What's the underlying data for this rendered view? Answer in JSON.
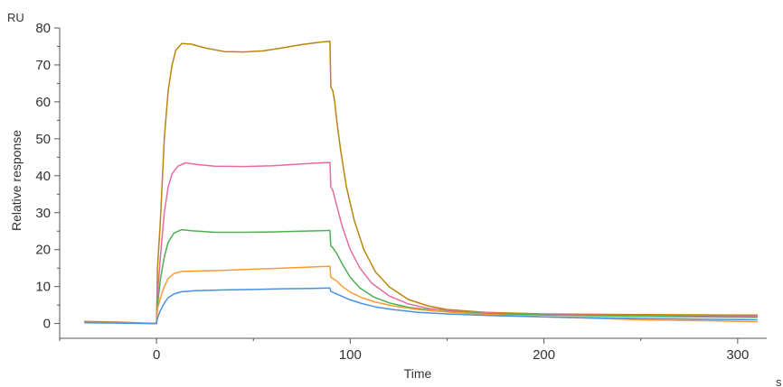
{
  "chart_data": {
    "type": "line",
    "title": "",
    "xlabel": "Time",
    "ylabel": "Relative response",
    "y_unit": "RU",
    "x_unit": "s",
    "xlim": [
      -50,
      315
    ],
    "ylim": [
      -4,
      80
    ],
    "x_ticks": [
      0,
      100,
      200,
      300
    ],
    "y_ticks": [
      0,
      10,
      20,
      30,
      40,
      50,
      60,
      70,
      80
    ],
    "grid": false,
    "legend": "none",
    "series": [
      {
        "color": "#b8860b",
        "points": [
          [
            -37,
            0.6
          ],
          [
            -20,
            0.4
          ],
          [
            0,
            0
          ],
          [
            0.5,
            15
          ],
          [
            2,
            28
          ],
          [
            4,
            50
          ],
          [
            6,
            63
          ],
          [
            8,
            70
          ],
          [
            10,
            74
          ],
          [
            13,
            75.8
          ],
          [
            18,
            75.6
          ],
          [
            25,
            74.6
          ],
          [
            35,
            73.6
          ],
          [
            45,
            73.5
          ],
          [
            55,
            73.8
          ],
          [
            65,
            74.6
          ],
          [
            75,
            75.5
          ],
          [
            85,
            76.2
          ],
          [
            89.5,
            76.4
          ],
          [
            90,
            64
          ],
          [
            91,
            63
          ],
          [
            92,
            60
          ],
          [
            93,
            55
          ],
          [
            95,
            47
          ],
          [
            98,
            37
          ],
          [
            102,
            28
          ],
          [
            107,
            20
          ],
          [
            113,
            14
          ],
          [
            120,
            10
          ],
          [
            130,
            6.5
          ],
          [
            140,
            4.8
          ],
          [
            150,
            3.8
          ],
          [
            170,
            3.0
          ],
          [
            200,
            2.6
          ],
          [
            250,
            2.4
          ],
          [
            300,
            2.3
          ],
          [
            310,
            2.3
          ]
        ]
      },
      {
        "color": "#e86aa0",
        "points": [
          [
            -37,
            0.5
          ],
          [
            -20,
            0.3
          ],
          [
            0,
            0
          ],
          [
            0.5,
            8
          ],
          [
            2,
            18
          ],
          [
            4,
            30
          ],
          [
            6,
            37
          ],
          [
            8,
            40.5
          ],
          [
            11,
            42.6
          ],
          [
            15,
            43.5
          ],
          [
            20,
            43.1
          ],
          [
            30,
            42.6
          ],
          [
            45,
            42.5
          ],
          [
            60,
            42.7
          ],
          [
            75,
            43.2
          ],
          [
            85,
            43.5
          ],
          [
            89.5,
            43.6
          ],
          [
            90,
            37
          ],
          [
            91,
            36
          ],
          [
            92,
            34
          ],
          [
            94,
            30
          ],
          [
            96,
            26
          ],
          [
            100,
            20
          ],
          [
            105,
            15
          ],
          [
            111,
            11
          ],
          [
            120,
            7.5
          ],
          [
            130,
            5.3
          ],
          [
            140,
            4.1
          ],
          [
            155,
            3.3
          ],
          [
            180,
            2.7
          ],
          [
            220,
            2.3
          ],
          [
            270,
            2.1
          ],
          [
            310,
            2.0
          ]
        ]
      },
      {
        "color": "#4caf50",
        "points": [
          [
            -37,
            0.4
          ],
          [
            -20,
            0.2
          ],
          [
            0,
            0
          ],
          [
            0.5,
            5
          ],
          [
            2,
            12
          ],
          [
            4,
            18
          ],
          [
            6,
            22
          ],
          [
            9,
            24.5
          ],
          [
            13,
            25.4
          ],
          [
            18,
            25.1
          ],
          [
            30,
            24.7
          ],
          [
            45,
            24.7
          ],
          [
            60,
            24.8
          ],
          [
            75,
            25
          ],
          [
            85,
            25.1
          ],
          [
            89.5,
            25.2
          ],
          [
            90,
            21
          ],
          [
            91,
            20.5
          ],
          [
            93,
            19
          ],
          [
            96,
            16
          ],
          [
            100,
            12.5
          ],
          [
            105,
            9.6
          ],
          [
            112,
            7.2
          ],
          [
            120,
            5.6
          ],
          [
            130,
            4.4
          ],
          [
            145,
            3.4
          ],
          [
            170,
            2.7
          ],
          [
            210,
            2.2
          ],
          [
            260,
            1.9
          ],
          [
            310,
            1.7
          ]
        ]
      },
      {
        "color": "#ff9933",
        "points": [
          [
            -37,
            0.3
          ],
          [
            -20,
            0.2
          ],
          [
            0,
            0
          ],
          [
            0.5,
            4
          ],
          [
            2,
            7
          ],
          [
            4,
            10
          ],
          [
            6,
            12.2
          ],
          [
            9,
            13.5
          ],
          [
            13,
            14.1
          ],
          [
            20,
            14.2
          ],
          [
            35,
            14.4
          ],
          [
            50,
            14.7
          ],
          [
            65,
            15
          ],
          [
            80,
            15.3
          ],
          [
            89.5,
            15.5
          ],
          [
            90,
            12.5
          ],
          [
            91,
            12.2
          ],
          [
            93,
            11.5
          ],
          [
            96,
            10
          ],
          [
            100,
            8.5
          ],
          [
            106,
            7
          ],
          [
            113,
            5.8
          ],
          [
            122,
            4.8
          ],
          [
            135,
            3.8
          ],
          [
            150,
            3.1
          ],
          [
            170,
            2.5
          ],
          [
            200,
            1.8
          ],
          [
            250,
            1.0
          ],
          [
            290,
            0.7
          ],
          [
            310,
            0.5
          ]
        ]
      },
      {
        "color": "#4a90e2",
        "points": [
          [
            -37,
            0.2
          ],
          [
            -20,
            0.1
          ],
          [
            0,
            0
          ],
          [
            0.5,
            1.5
          ],
          [
            2,
            3.5
          ],
          [
            4,
            5.5
          ],
          [
            6,
            7
          ],
          [
            9,
            8
          ],
          [
            13,
            8.6
          ],
          [
            20,
            8.9
          ],
          [
            35,
            9.1
          ],
          [
            50,
            9.2
          ],
          [
            65,
            9.4
          ],
          [
            80,
            9.5
          ],
          [
            89.5,
            9.6
          ],
          [
            90,
            8.7
          ],
          [
            92,
            8.2
          ],
          [
            96,
            7.3
          ],
          [
            100,
            6.4
          ],
          [
            106,
            5.4
          ],
          [
            113,
            4.5
          ],
          [
            122,
            3.8
          ],
          [
            135,
            3.0
          ],
          [
            150,
            2.6
          ],
          [
            175,
            2.1
          ],
          [
            210,
            1.7
          ],
          [
            260,
            1.3
          ],
          [
            310,
            1.0
          ]
        ]
      }
    ]
  }
}
